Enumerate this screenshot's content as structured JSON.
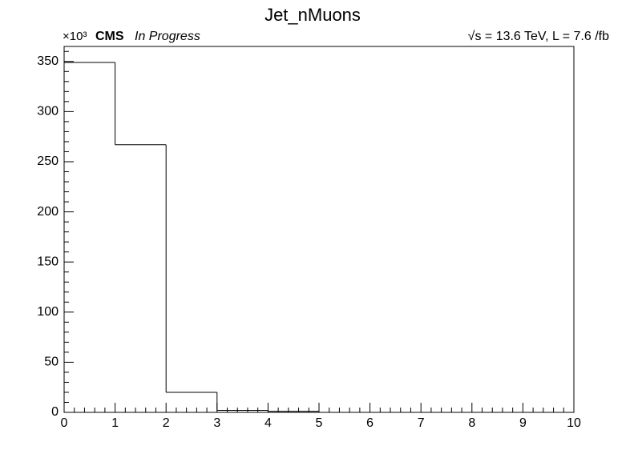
{
  "chart_data": {
    "type": "histogram",
    "title": "Jet_nMuons",
    "experiment": "CMS",
    "status": "In Progress",
    "energy_lumi": "√s = 13.6 TeV, L = 7.6 /fb",
    "y_scale_label": "×10³",
    "bins": [
      0,
      1,
      2,
      3,
      4,
      5,
      6,
      7,
      8,
      9,
      10
    ],
    "values": [
      349,
      267,
      20,
      2,
      1,
      0,
      0,
      0,
      0,
      0
    ],
    "color": "#000000",
    "xlim": [
      0,
      10
    ],
    "xticks": [
      0,
      1,
      2,
      3,
      4,
      5,
      6,
      7,
      8,
      9,
      10
    ],
    "ylim": [
      0,
      365
    ],
    "yticks": [
      0,
      50,
      100,
      150,
      200,
      250,
      300,
      350
    ],
    "minor_divisions": 5
  }
}
